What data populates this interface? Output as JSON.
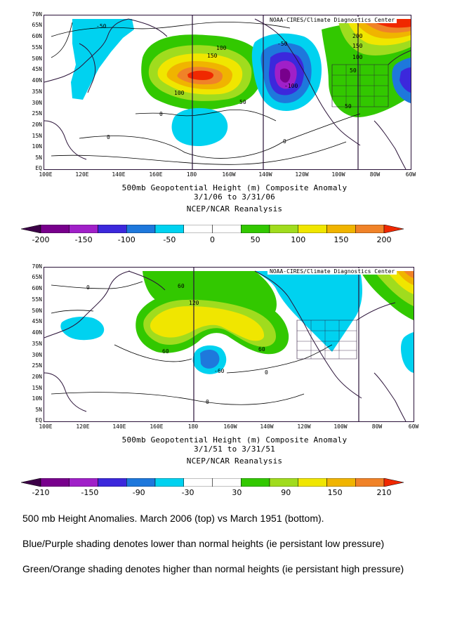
{
  "colors": {
    "scale": [
      "#3c0047",
      "#78008c",
      "#a020c8",
      "#3c28dc",
      "#1e78dc",
      "#00d2f0",
      "#ffffff",
      "#ffffff",
      "#32c800",
      "#a0dc1e",
      "#f0e600",
      "#f0b400",
      "#f08228",
      "#f02800"
    ],
    "border": "#2a1238",
    "contour": "#000000"
  },
  "top_panel": {
    "credit": "NOAA-CIRES/Climate Diagnostics Center",
    "y_labels": [
      "70N",
      "65N",
      "60N",
      "55N",
      "50N",
      "45N",
      "40N",
      "35N",
      "30N",
      "25N",
      "20N",
      "15N",
      "10N",
      "5N",
      "EQ"
    ],
    "x_labels": [
      "100E",
      "120E",
      "140E",
      "160E",
      "180",
      "160W",
      "140W",
      "120W",
      "100W",
      "80W",
      "60W"
    ],
    "caption_line1": "500mb Geopotential Height (m) Composite Anomaly",
    "caption_line2": "3/1/06   to 3/31/06",
    "caption_line3": "NCEP/NCAR Reanalysis",
    "contour_labels": [
      "-50",
      "150",
      "100",
      "100",
      "50",
      "0",
      "0",
      "0",
      "-50",
      "-100",
      "200",
      "150",
      "100",
      "50",
      "50"
    ],
    "colorbar_ticks": [
      "-200",
      "-150",
      "-100",
      "-50",
      "0",
      "50",
      "100",
      "150",
      "200"
    ]
  },
  "bottom_panel": {
    "credit": "NOAA-CIRES/Climate Diagnostics Center",
    "y_labels": [
      "70N",
      "65N",
      "60N",
      "55N",
      "50N",
      "45N",
      "40N",
      "35N",
      "30N",
      "25N",
      "20N",
      "15N",
      "10N",
      "5N",
      "EQ"
    ],
    "x_labels": [
      "100E",
      "120E",
      "140E",
      "160E",
      "180",
      "160W",
      "140W",
      "120W",
      "100W",
      "80W",
      "60W"
    ],
    "caption_line1": "500mb Geopotential Height (m) Composite Anomaly",
    "caption_line2": "3/1/51   to 3/31/51",
    "caption_line3": "NCEP/NCAR Reanalysis",
    "contour_labels": [
      "0",
      "60",
      "120",
      "60",
      "60",
      "-60",
      "0",
      "0"
    ],
    "colorbar_ticks": [
      "-210",
      "-150",
      "-90",
      "-30",
      "30",
      "90",
      "150",
      "210"
    ]
  },
  "description": {
    "line1": "500 mb Height Anomalies.  March 2006 (top) vs March 1951 (bottom).",
    "line2": "Blue/Purple shading denotes lower than normal heights (ie  persistant low pressure)",
    "line3": "Green/Orange shading denotes higher than normal heights (ie persistant high pressure)"
  }
}
